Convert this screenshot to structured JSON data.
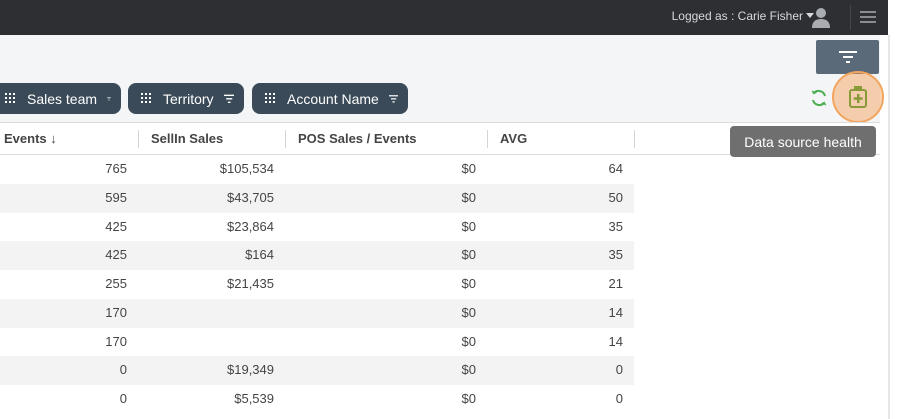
{
  "header": {
    "logged_as": "Logged as : Carie Fisher"
  },
  "filters": [
    {
      "label": "Sales team"
    },
    {
      "label": "Territory"
    },
    {
      "label": "Account Name"
    }
  ],
  "tooltip": {
    "text": "Data source health"
  },
  "table": {
    "columns": [
      "Events ↓",
      "SellIn Sales",
      "POS Sales / Events",
      "AVG"
    ],
    "rows": [
      [
        "765",
        "$105,534",
        "$0",
        "64"
      ],
      [
        "595",
        "$43,705",
        "$0",
        "50"
      ],
      [
        "425",
        "$23,864",
        "$0",
        "35"
      ],
      [
        "425",
        "$164",
        "$0",
        "35"
      ],
      [
        "255",
        "$21,435",
        "$0",
        "21"
      ],
      [
        "170",
        "",
        "$0",
        "14"
      ],
      [
        "170",
        "",
        "$0",
        "14"
      ],
      [
        "0",
        "$19,349",
        "$0",
        "0"
      ],
      [
        "0",
        "$5,539",
        "$0",
        "0"
      ]
    ]
  },
  "icons": {
    "user": "user-avatar-icon",
    "menu": "hamburger-menu-icon",
    "filter": "filter-icon",
    "refresh": "refresh-icon",
    "health": "data-health-icon"
  },
  "colors": {
    "topbar": "#2d2f33",
    "chip": "#3a4a58",
    "filter_button": "#5a6a78",
    "refresh": "#4caf50",
    "health_highlight": "#f2a55e",
    "tooltip": "#6f6f6f"
  }
}
